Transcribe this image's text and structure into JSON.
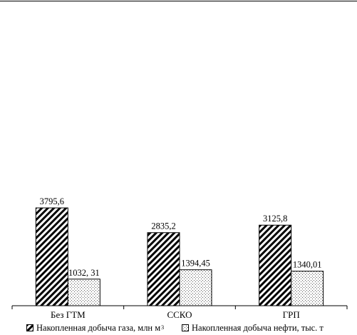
{
  "chart_data": {
    "type": "bar",
    "categories": [
      "Без ГТМ",
      "ССКО",
      "ГРП"
    ],
    "series": [
      {
        "name": "Накопленная добыча газа, млн м",
        "name_superscript": "3",
        "values": [
          3795.6,
          2835.2,
          3125.8
        ],
        "labels": [
          "3795,6",
          "2835,2",
          "3125,8"
        ],
        "pattern": "diagonal-hatch",
        "color": "#000000"
      },
      {
        "name": "Накопленная добыча нефти, тыс. т",
        "values": [
          1032.31,
          1394.45,
          1340.01
        ],
        "labels": [
          "1032, 31",
          "1394,45",
          "1340,01"
        ],
        "pattern": "dotted",
        "color": "#555555"
      }
    ],
    "ylim": [
      0,
      4850
    ],
    "grid": false,
    "legend_position": "bottom"
  }
}
